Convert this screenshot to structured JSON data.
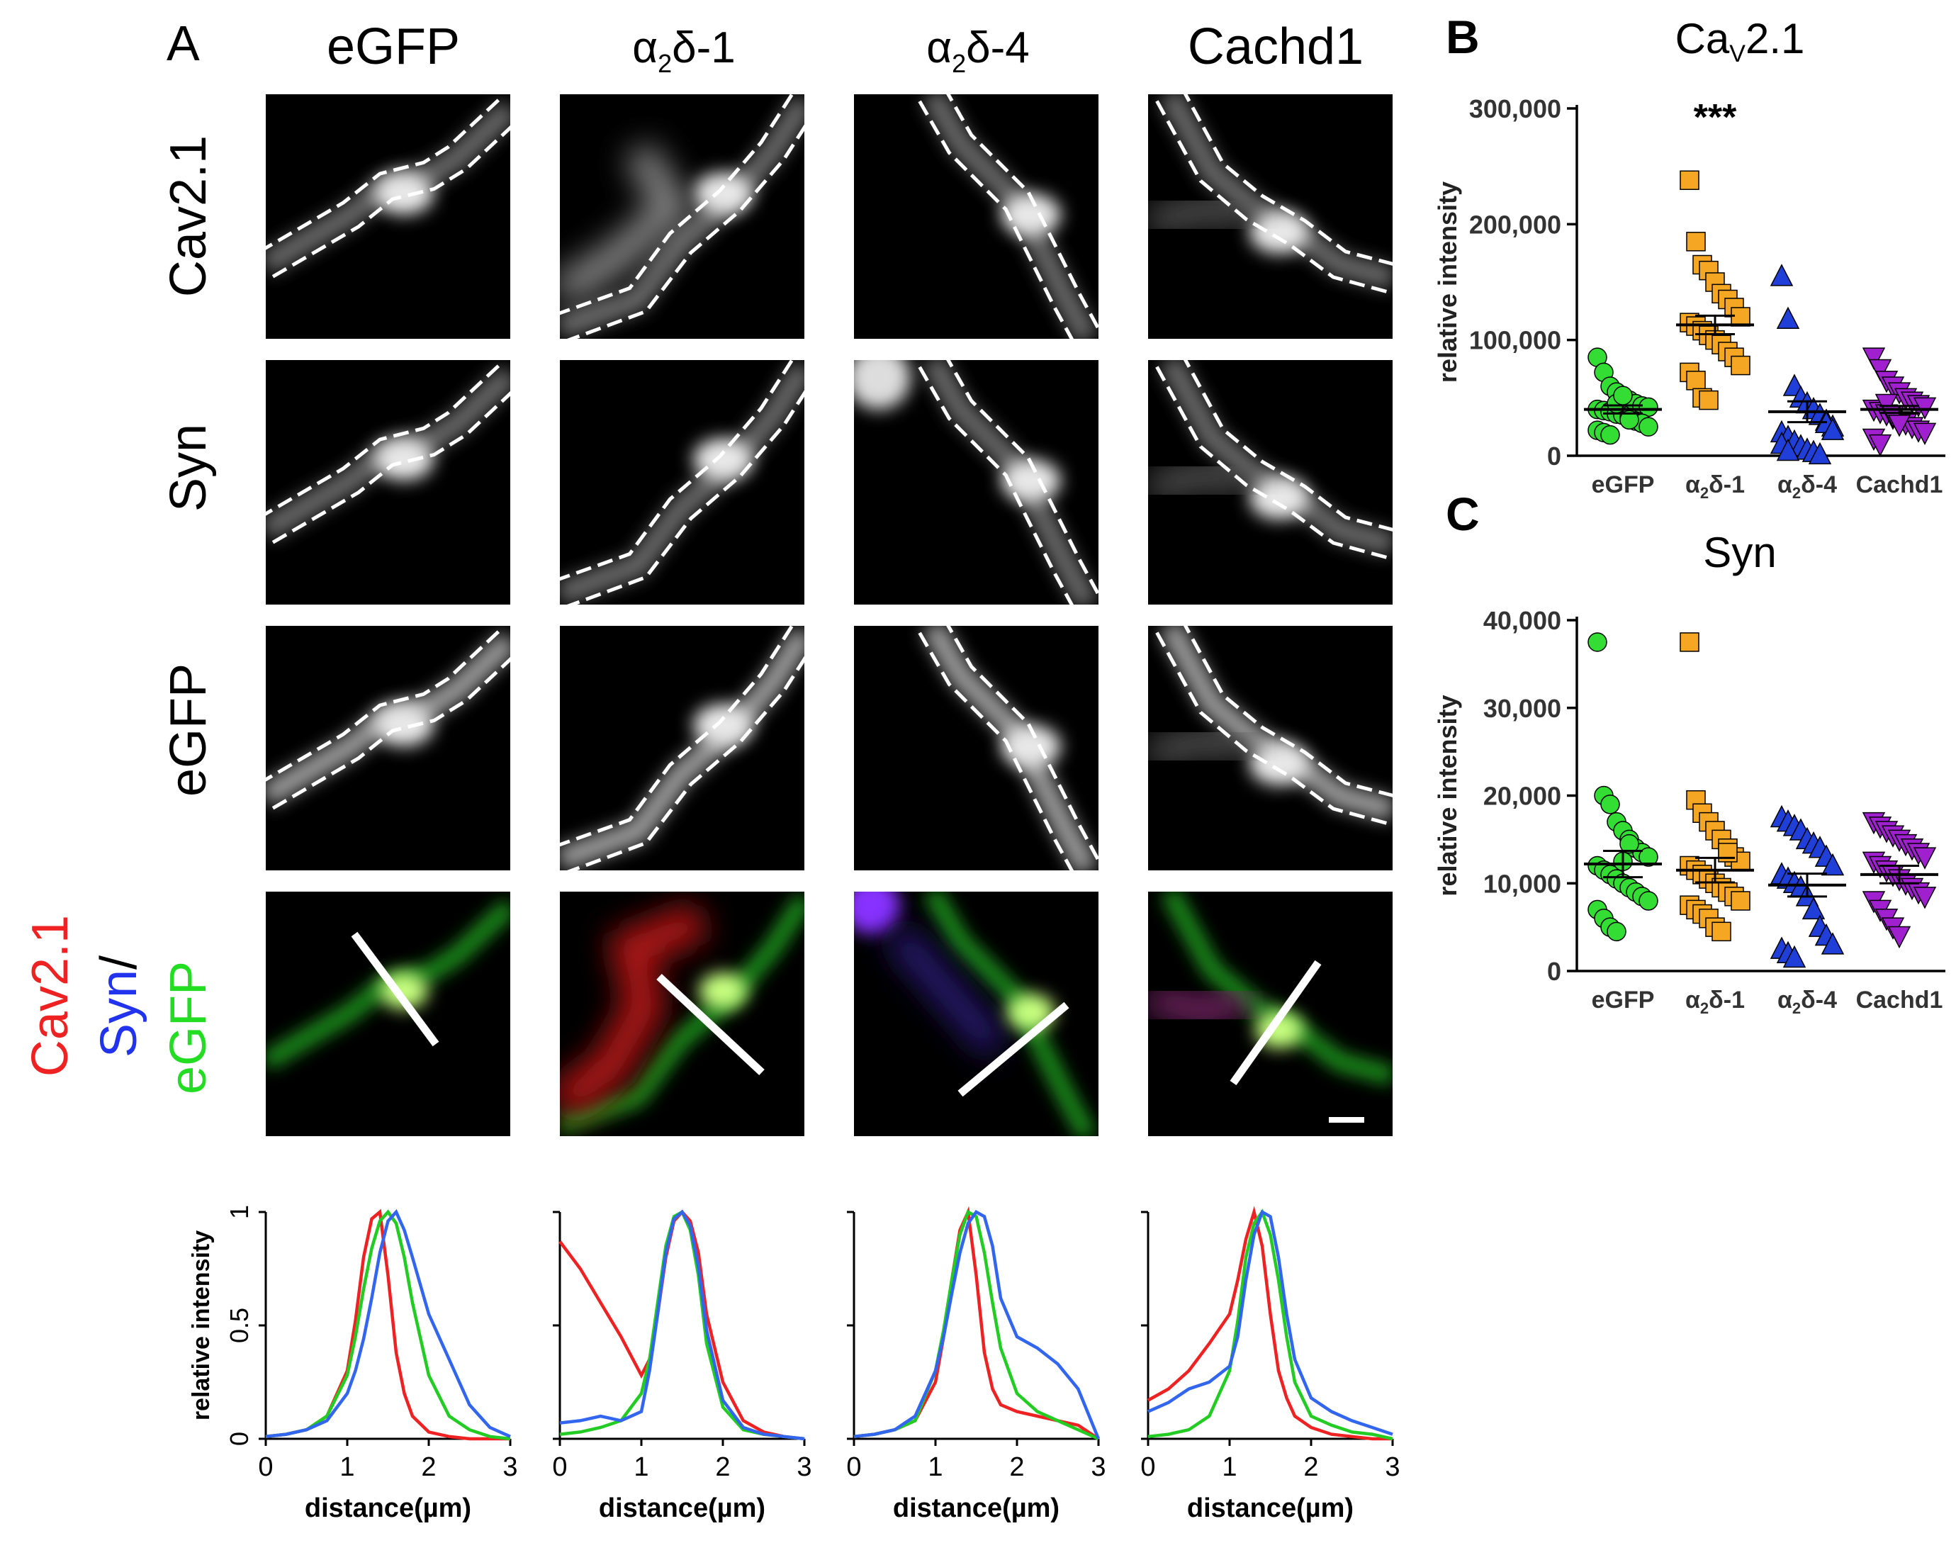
{
  "panel_labels": {
    "a": "A",
    "b": "B",
    "c": "C"
  },
  "colors": {
    "red": "#ee2222",
    "green": "#22cc22",
    "blue": "#3366ee",
    "egfp": "#33dd33",
    "a2d1": "#f5a623",
    "a2d4": "#1f3fd8",
    "cachd1": "#a020d0"
  },
  "columns": [
    {
      "id": "egfp",
      "sym": "",
      "tail": "eGFP"
    },
    {
      "id": "a2d1",
      "sym": "α",
      "sub": "2",
      "tail": "δ-1"
    },
    {
      "id": "a2d4",
      "sym": "α",
      "sub": "2",
      "tail": "δ-4"
    },
    {
      "id": "cachd1",
      "sym": "",
      "tail": "Cachd1"
    }
  ],
  "rows": [
    "Cav2.1",
    "Syn",
    "eGFP"
  ],
  "merge_label": {
    "red": "Cav2.1",
    "blue": "Syn",
    "slash": "/",
    "green": "eGFP"
  },
  "profile_axes": {
    "ylabel": "relative intensity",
    "xlabel": "distance(µm)",
    "xticks": [
      "0",
      "1",
      "2",
      "3"
    ],
    "yticks": [
      "0",
      "0.5",
      "1"
    ]
  },
  "chart_data": [
    {
      "panel": "A-profiles",
      "type": "line",
      "x": [
        0,
        0.25,
        0.5,
        0.75,
        1.0,
        1.1,
        1.2,
        1.3,
        1.4,
        1.5,
        1.6,
        1.7,
        1.8,
        2.0,
        2.25,
        2.5,
        2.75,
        3.0
      ],
      "xlim": [
        0,
        3
      ],
      "ylim": [
        0,
        1
      ],
      "profiles": [
        {
          "name": "eGFP",
          "red": [
            0.01,
            0.02,
            0.04,
            0.1,
            0.3,
            0.52,
            0.8,
            0.97,
            1.0,
            0.72,
            0.38,
            0.2,
            0.1,
            0.03,
            0.01,
            0.0,
            0.0,
            0.0
          ],
          "green": [
            0.01,
            0.02,
            0.04,
            0.1,
            0.28,
            0.45,
            0.66,
            0.84,
            0.96,
            1.0,
            0.95,
            0.8,
            0.6,
            0.28,
            0.1,
            0.04,
            0.01,
            0.0
          ],
          "blue": [
            0.01,
            0.02,
            0.04,
            0.08,
            0.2,
            0.3,
            0.44,
            0.62,
            0.82,
            0.96,
            1.0,
            0.92,
            0.8,
            0.55,
            0.35,
            0.15,
            0.05,
            0.01
          ]
        },
        {
          "name": "a2d1",
          "red": [
            0.87,
            0.75,
            0.6,
            0.45,
            0.28,
            0.35,
            0.55,
            0.8,
            0.96,
            1.0,
            0.96,
            0.82,
            0.55,
            0.25,
            0.08,
            0.03,
            0.01,
            0.0
          ],
          "green": [
            0.02,
            0.03,
            0.05,
            0.08,
            0.2,
            0.35,
            0.6,
            0.85,
            0.98,
            1.0,
            0.92,
            0.72,
            0.42,
            0.14,
            0.04,
            0.02,
            0.01,
            0.0
          ],
          "blue": [
            0.07,
            0.08,
            0.1,
            0.08,
            0.12,
            0.3,
            0.55,
            0.82,
            0.97,
            1.0,
            0.94,
            0.76,
            0.48,
            0.17,
            0.05,
            0.02,
            0.01,
            0.0
          ]
        },
        {
          "name": "a2d4",
          "red": [
            0.01,
            0.02,
            0.04,
            0.08,
            0.25,
            0.45,
            0.7,
            0.92,
            1.0,
            0.72,
            0.38,
            0.22,
            0.15,
            0.12,
            0.1,
            0.08,
            0.06,
            0.0
          ],
          "green": [
            0.01,
            0.02,
            0.04,
            0.08,
            0.3,
            0.48,
            0.7,
            0.9,
            1.0,
            0.98,
            0.82,
            0.6,
            0.4,
            0.2,
            0.12,
            0.08,
            0.04,
            0.0
          ],
          "blue": [
            0.01,
            0.02,
            0.04,
            0.1,
            0.3,
            0.45,
            0.64,
            0.82,
            0.95,
            1.0,
            0.98,
            0.85,
            0.62,
            0.45,
            0.4,
            0.33,
            0.22,
            0.0
          ]
        },
        {
          "name": "cachd1",
          "red": [
            0.17,
            0.22,
            0.3,
            0.42,
            0.55,
            0.7,
            0.88,
            1.0,
            0.85,
            0.55,
            0.3,
            0.18,
            0.1,
            0.05,
            0.02,
            0.01,
            0.0,
            0.0
          ],
          "green": [
            0.01,
            0.02,
            0.04,
            0.1,
            0.3,
            0.52,
            0.8,
            0.95,
            1.0,
            0.9,
            0.7,
            0.45,
            0.25,
            0.1,
            0.06,
            0.03,
            0.02,
            0.0
          ],
          "blue": [
            0.12,
            0.16,
            0.22,
            0.25,
            0.32,
            0.45,
            0.7,
            0.9,
            1.0,
            0.98,
            0.8,
            0.55,
            0.35,
            0.18,
            0.12,
            0.08,
            0.05,
            0.02
          ]
        }
      ]
    },
    {
      "panel": "B",
      "type": "scatter",
      "title": "Cav2.1",
      "title_main": "Ca",
      "title_sub": "V",
      "title_tail": "2.1",
      "ylabel": "relative intensity",
      "ylim": [
        0,
        300000
      ],
      "yticks": [
        0,
        100000,
        200000,
        300000
      ],
      "ytick_labels": [
        "0",
        "100,000",
        "200,000",
        "300,000"
      ],
      "categories": [
        "eGFP",
        "α2δ-1",
        "α2δ-4",
        "Cachd1"
      ],
      "annotation": "***",
      "series": [
        {
          "name": "eGFP",
          "marker": "circle",
          "mean": 40000,
          "sem": 3500,
          "values": [
            85000,
            72000,
            60000,
            55000,
            50000,
            48000,
            45000,
            43000,
            42000,
            40000,
            39000,
            38000,
            36000,
            35000,
            33000,
            30000,
            28000,
            25000,
            22000,
            20000,
            18000,
            45000,
            52000,
            31000
          ]
        },
        {
          "name": "α2δ-1",
          "marker": "square",
          "mean": 113000,
          "sem": 8000,
          "values": [
            238000,
            185000,
            165000,
            160000,
            150000,
            140000,
            135000,
            128000,
            120000,
            115000,
            112000,
            108000,
            104000,
            100000,
            96000,
            90000,
            85000,
            78000,
            72000,
            65000,
            50000,
            48000
          ]
        },
        {
          "name": "α2δ-4",
          "marker": "triangle-up",
          "mean": 38000,
          "sem": 9000,
          "values": [
            155000,
            118000,
            60000,
            50000,
            45000,
            40000,
            35000,
            30000,
            25000,
            20000,
            16000,
            12000,
            8000,
            5000,
            3000,
            1000,
            28000,
            22000,
            10000,
            4000
          ]
        },
        {
          "name": "Cachd1",
          "marker": "triangle-down",
          "mean": 40000,
          "sem": 3000,
          "values": [
            85000,
            75000,
            65000,
            60000,
            55000,
            50000,
            47000,
            44000,
            42000,
            40000,
            38000,
            36000,
            33000,
            30000,
            28000,
            25000,
            22000,
            20000,
            15000,
            10000,
            45000,
            35000,
            27000
          ]
        }
      ]
    },
    {
      "panel": "C",
      "type": "scatter",
      "title": "Syn",
      "ylabel": "relative intensity",
      "ylim": [
        0,
        40000
      ],
      "yticks": [
        0,
        10000,
        20000,
        30000,
        40000
      ],
      "ytick_labels": [
        "0",
        "10,000",
        "20,000",
        "30,000",
        "40,000"
      ],
      "categories": [
        "eGFP",
        "α2δ-1",
        "α2δ-4",
        "Cachd1"
      ],
      "series": [
        {
          "name": "eGFP",
          "marker": "circle",
          "mean": 12200,
          "sem": 1500,
          "values": [
            37500,
            20000,
            19000,
            17000,
            16000,
            15000,
            14000,
            13500,
            13000,
            12000,
            11500,
            11000,
            10500,
            10000,
            9500,
            9000,
            8500,
            8000,
            7000,
            6000,
            5000,
            4500,
            12500,
            14500
          ]
        },
        {
          "name": "α2δ-1",
          "marker": "square",
          "mean": 11500,
          "sem": 1400,
          "values": [
            37500,
            19500,
            18000,
            17000,
            16000,
            15000,
            14000,
            13000,
            12500,
            12000,
            11500,
            11000,
            10500,
            10000,
            9500,
            9000,
            8500,
            8000,
            7500,
            7000,
            6500,
            6000,
            5000,
            4500,
            13500
          ]
        },
        {
          "name": "α2δ-4",
          "marker": "triangle-up",
          "mean": 9800,
          "sem": 1300,
          "values": [
            17500,
            17000,
            16500,
            16000,
            15000,
            14500,
            14000,
            13000,
            12000,
            11000,
            10500,
            10000,
            9500,
            8500,
            7000,
            5000,
            4000,
            3000,
            2500,
            2000,
            1500
          ]
        },
        {
          "name": "Cachd1",
          "marker": "triangle-down",
          "mean": 11000,
          "sem": 1000,
          "values": [
            17000,
            16500,
            16000,
            15500,
            15000,
            14500,
            14000,
            13500,
            13000,
            12500,
            12000,
            11500,
            11000,
            10500,
            10000,
            9500,
            9000,
            8500,
            8000,
            7000,
            6000,
            5000,
            4000
          ]
        }
      ]
    }
  ]
}
